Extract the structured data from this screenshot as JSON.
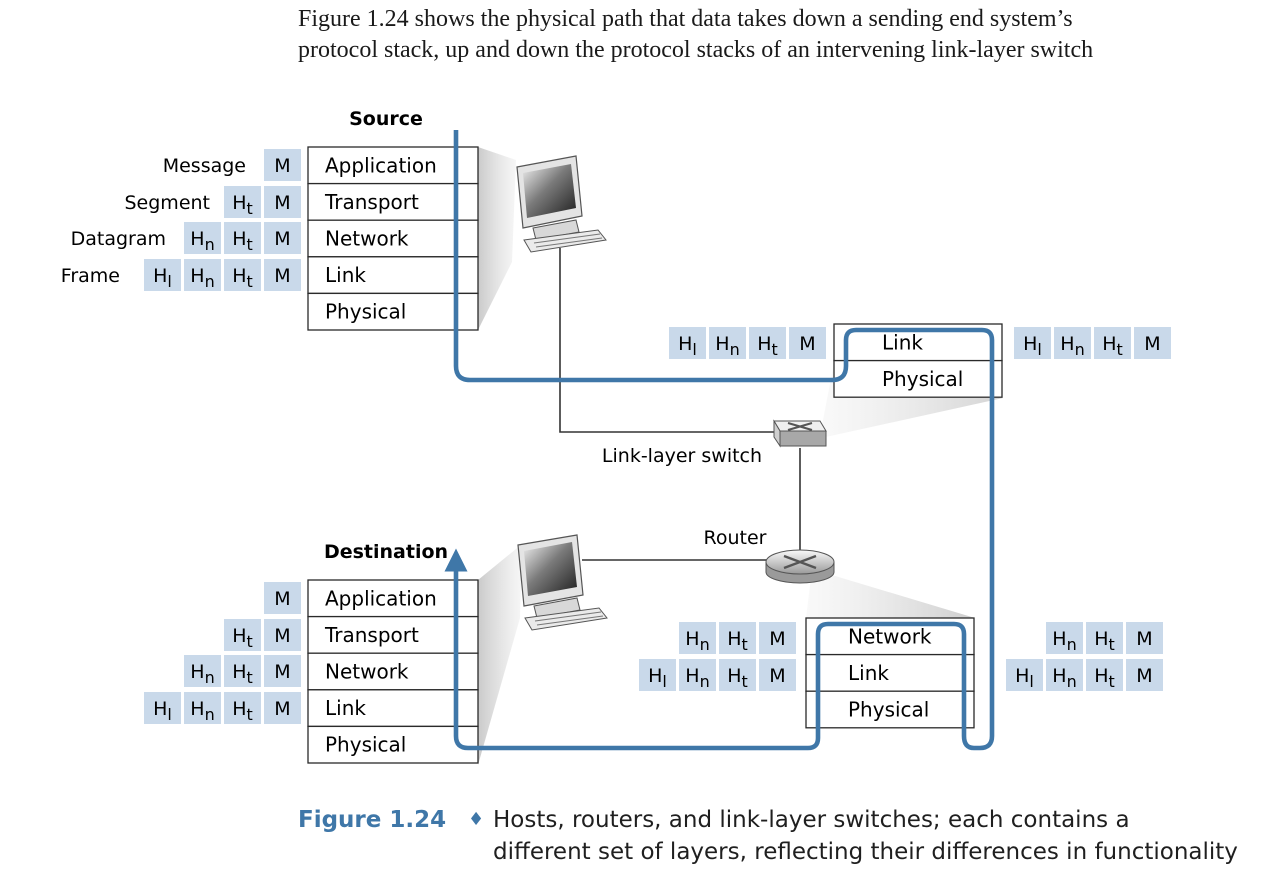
{
  "intro_text": [
    "Figure 1.24 shows the physical path that data takes down a sending end system’s",
    "protocol stack, up and down the protocol stacks of an intervening link-layer switch"
  ],
  "caption": {
    "label": "Figure 1.24",
    "separator": "♦",
    "lines": [
      "Hosts, routers, and link-layer switches; each contains a",
      "different set of layers, reflecting their differences in functionality"
    ]
  },
  "labels": {
    "source": "Source",
    "destination": "Destination",
    "switch": "Link-layer switch",
    "router": "Router"
  },
  "source_stack": {
    "layers": [
      "Application",
      "Transport",
      "Network",
      "Link",
      "Physical"
    ],
    "pdu_names": [
      "Message",
      "Segment",
      "Datagram",
      "Frame"
    ]
  },
  "destination_stack": {
    "layers": [
      "Application",
      "Transport",
      "Network",
      "Link",
      "Physical"
    ]
  },
  "switch_stack": {
    "layers": [
      "Link",
      "Physical"
    ]
  },
  "router_stack": {
    "layers": [
      "Network",
      "Link",
      "Physical"
    ]
  },
  "headers": {
    "message": "M",
    "transport": "H",
    "transport_sub": "t",
    "network": "H",
    "network_sub": "n",
    "link": "H",
    "link_sub": "l"
  },
  "colors": {
    "path": "#3f77a8",
    "header_cell": "#c9d9ea",
    "caption_accent": "#3f77a8"
  }
}
